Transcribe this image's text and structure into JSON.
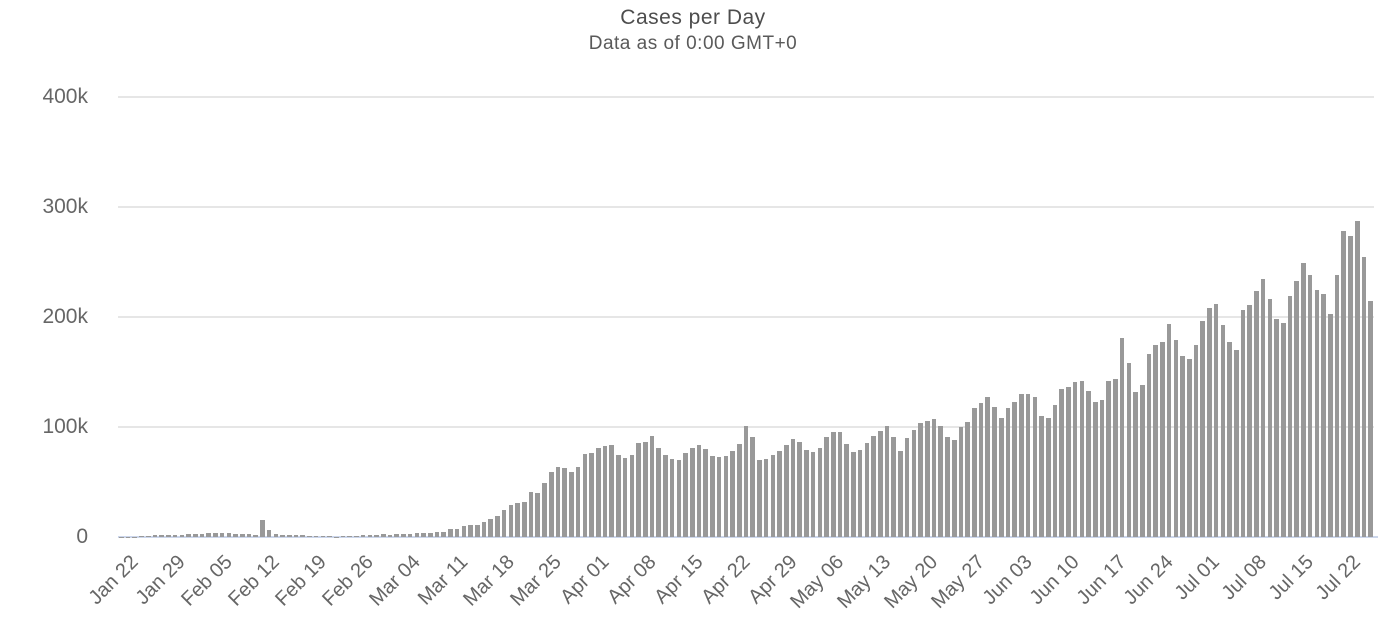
{
  "chart_data": {
    "type": "bar",
    "title": "Cases per Day",
    "subtitle": "Data as of 0:00 GMT+0",
    "unit": "new cases per day (values stored in thousands)",
    "grid": "horizontal",
    "legend": "none",
    "y_axis": {
      "tick_labels": [
        "0",
        "100k",
        "200k",
        "300k",
        "400k"
      ],
      "min": 0,
      "max": 400000,
      "tick_interval": 100000
    },
    "x_axis": {
      "tick_labels": [
        "Jan 22",
        "Jan 29",
        "Feb 05",
        "Feb 12",
        "Feb 19",
        "Feb 26",
        "Mar 04",
        "Mar 11",
        "Mar 18",
        "Mar 25",
        "Apr 01",
        "Apr 08",
        "Apr 15",
        "Apr 22",
        "Apr 29",
        "May 06",
        "May 13",
        "May 20",
        "May 27",
        "Jun 03",
        "Jun 10",
        "Jun 17",
        "Jun 24",
        "Jul 01",
        "Jul 08",
        "Jul 15",
        "Jul 22"
      ],
      "tick_every_n_bars": 7,
      "label_rotation_deg": -45,
      "first_bar_date": "Jan 22",
      "last_bar_date": "Jul 26"
    },
    "x_dates_spec": [
      {
        "month": "Jan",
        "from": 22,
        "to": 31
      },
      {
        "month": "Feb",
        "from": 1,
        "to": 29
      },
      {
        "month": "Mar",
        "from": 1,
        "to": 31
      },
      {
        "month": "Apr",
        "from": 1,
        "to": 30
      },
      {
        "month": "May",
        "from": 1,
        "to": 31
      },
      {
        "month": "Jun",
        "from": 1,
        "to": 30
      },
      {
        "month": "Jul",
        "from": 1,
        "to": 26
      }
    ],
    "values_thousands": [
      0.1,
      0.3,
      0.4,
      0.7,
      0.8,
      1.8,
      1.5,
      1.8,
      2.0,
      2.1,
      2.6,
      2.8,
      2.6,
      3.2,
      3.9,
      3.7,
      3.2,
      2.7,
      3.0,
      2.6,
      2.0,
      15.2,
      6.5,
      2.6,
      2.1,
      1.9,
      1.9,
      1.8,
      0.6,
      0.5,
      0.6,
      1.0,
      0.4,
      0.6,
      0.9,
      1.0,
      1.4,
      1.4,
      1.9,
      2.4,
      1.9,
      2.6,
      2.5,
      2.9,
      4.0,
      4.0,
      4.0,
      4.3,
      4.6,
      7.5,
      7.0,
      10.0,
      10.9,
      11.0,
      13.9,
      16.5,
      18.7,
      24.9,
      28.9,
      30.8,
      31.4,
      40.8,
      39.8,
      49.2,
      59.3,
      63.2,
      62.8,
      58.8,
      63.4,
      75.1,
      76.5,
      80.7,
      83.1,
      83.5,
      74.2,
      71.6,
      74.8,
      85.2,
      86.7,
      91.4,
      81.1,
      74.3,
      71.2,
      70.2,
      76.0,
      81.0,
      84.0,
      80.0,
      74.0,
      73.0,
      74.0,
      78.0,
      85.0,
      100.9,
      91.0,
      70.2,
      70.8,
      74.6,
      77.8,
      84.0,
      88.7,
      86.0,
      79.4,
      77.1,
      81.0,
      91.1,
      95.8,
      95.3,
      85.0,
      77.2,
      79.5,
      85.3,
      91.6,
      96.3,
      100.5,
      91.2,
      77.9,
      90.2,
      97.5,
      103.4,
      105.5,
      107.2,
      100.8,
      91.0,
      88.5,
      99.9,
      104.7,
      117.0,
      121.7,
      127.1,
      117.8,
      108.6,
      117.7,
      123.1,
      129.9,
      130.2,
      127.3,
      110.0,
      108.1,
      120.2,
      134.9,
      136.6,
      140.5,
      141.9,
      133.1,
      122.5,
      124.9,
      141.8,
      144.0,
      181.0,
      158.3,
      131.4,
      138.6,
      166.3,
      174.2,
      177.7,
      193.3,
      178.8,
      164.9,
      162.0,
      174.2,
      196.0,
      208.0,
      212.0,
      193.0,
      177.0,
      170.0,
      206.0,
      211.0,
      224.0,
      235.0,
      216.0,
      198.0,
      195.0,
      219.0,
      233.0,
      249.0,
      238.0,
      225.0,
      221.0,
      203.0,
      238.0,
      278.0,
      274.0,
      287.0,
      255.0,
      215.0
    ],
    "colors": {
      "background": "#ffffff",
      "bar": "#999999",
      "grid_line": "#e6e6e6",
      "axis_line": "#ccd6eb",
      "title_text": "#4d4d4d",
      "subtitle_text": "#5a5a5a",
      "axis_label_text": "#666666"
    }
  }
}
